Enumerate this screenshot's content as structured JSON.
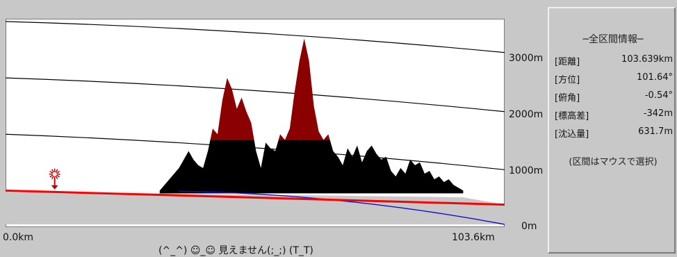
{
  "chart_data": {
    "type": "area",
    "title": "",
    "xlabel": "",
    "ylabel": "",
    "xlim": [
      0,
      103.6
    ],
    "ylim": [
      0,
      3600
    ],
    "y_ticks": [
      "3000m",
      "2000m",
      "1000m",
      "0m"
    ],
    "y_tick_values": [
      3000,
      2000,
      1000,
      0
    ],
    "x_start_label": "0.0km",
    "x_end_label": "103.6km",
    "grid": false,
    "colors": {
      "terrain_visible": "#000000",
      "terrain_peak": "#8b0000",
      "hidden_area": "#c8c8c8",
      "sight_line": "#ff0000",
      "earth_curve": "#1010d0",
      "altitude_curves": "#000000"
    },
    "terrain": {
      "x": [
        32,
        33,
        35,
        36,
        37,
        38,
        39,
        40,
        41,
        42,
        43,
        44,
        45,
        46,
        47,
        48,
        49,
        50,
        51,
        52,
        53,
        54,
        55,
        56,
        57,
        58,
        59,
        60,
        61,
        62,
        63,
        64,
        65,
        66,
        67,
        68,
        69,
        70,
        71,
        72,
        73,
        74,
        75,
        76,
        77,
        78,
        79,
        80,
        81,
        82,
        83,
        84,
        85,
        86,
        87,
        88,
        89,
        90,
        91,
        92,
        93,
        94,
        95
      ],
      "y": [
        600,
        700,
        900,
        1000,
        1150,
        1300,
        1150,
        1050,
        1000,
        1300,
        1700,
        1600,
        2200,
        2600,
        2400,
        2050,
        2250,
        2000,
        1800,
        1300,
        1000,
        1450,
        1350,
        1300,
        1600,
        1500,
        1700,
        2350,
        2900,
        3300,
        2900,
        2100,
        1650,
        1500,
        1600,
        1300,
        1200,
        1050,
        1350,
        1200,
        1400,
        1100,
        1300,
        1400,
        1250,
        1150,
        1200,
        950,
        850,
        1000,
        900,
        1150,
        1050,
        1100,
        900,
        950,
        800,
        850,
        750,
        800,
        700,
        650,
        600
      ]
    },
    "visibility_cutoff": 1500,
    "sight_line": {
      "x": [
        0,
        103.6
      ],
      "y": [
        600,
        350
      ]
    },
    "earth_curve": {
      "x": [
        36,
        103.6
      ],
      "y": [
        590,
        0
      ]
    },
    "hidden_ground": {
      "x": [
        0,
        32,
        95,
        103.6
      ],
      "y": [
        580,
        550,
        480,
        350
      ]
    },
    "altitude_curves": [
      {
        "x": [
          0,
          103.6
        ],
        "y": [
          3600,
          3050
        ]
      },
      {
        "x": [
          0,
          103.6
        ],
        "y": [
          2600,
          2000
        ]
      },
      {
        "x": [
          0,
          103.6
        ],
        "y": [
          1600,
          970
        ]
      }
    ],
    "observer_marker": {
      "x": 10.2,
      "y": 620
    }
  },
  "status_text": "(^_^) ☺_☺ 見えません(;_;) (T_T)",
  "info_panel": {
    "title": "─全区間情報─",
    "rows": [
      {
        "label": "[距離]",
        "value": "103.639km"
      },
      {
        "label": "[方位]",
        "value": "101.64°"
      },
      {
        "label": "[俯角]",
        "value": "-0.54°"
      },
      {
        "label": "[標高差]",
        "value": "-342m"
      },
      {
        "label": "[沈込量]",
        "value": "631.7m"
      }
    ],
    "hint": "(区間はマウスで選択)"
  }
}
